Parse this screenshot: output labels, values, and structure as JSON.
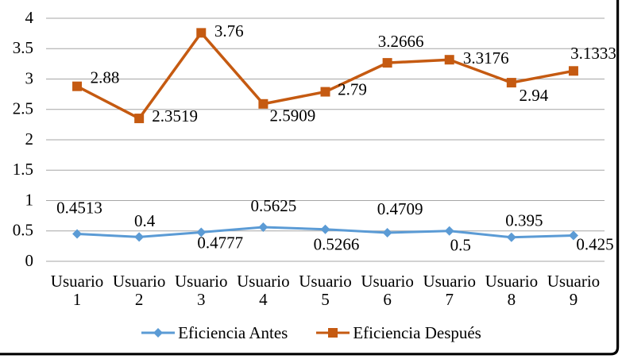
{
  "chart_data": {
    "type": "line",
    "title": "",
    "xlabel": "",
    "ylabel": "",
    "categories": [
      "Usuario 1",
      "Usuario 2",
      "Usuario 3",
      "Usuario 4",
      "Usuario 5",
      "Usuario 6",
      "Usuario 7",
      "Usuario 8",
      "Usuario 9"
    ],
    "series": [
      {
        "name": "Eficiencia Antes",
        "color": "#5B9BD5",
        "marker": "diamond",
        "values": [
          0.4513,
          0.4,
          0.4777,
          0.5625,
          0.5266,
          0.4709,
          0.5,
          0.395,
          0.425
        ],
        "labels": [
          "0.4513",
          "0.4",
          "0.4777",
          "0.5625",
          "0.5266",
          "0.4709",
          "0.5",
          "0.395",
          "0.425"
        ]
      },
      {
        "name": "Eficiencia Después",
        "color": "#C55A11",
        "marker": "square",
        "values": [
          2.88,
          2.3519,
          3.76,
          2.5909,
          2.79,
          3.2666,
          3.3176,
          2.94,
          3.1333
        ],
        "labels": [
          "2.88",
          "2.3519",
          "3.76",
          "2.5909",
          "2.79",
          "3.2666",
          "3.3176",
          "2.94",
          "3.1333"
        ]
      }
    ],
    "y_axis": {
      "min": 0,
      "max": 4,
      "step": 0.5,
      "ticks": [
        "0",
        "0.5",
        "1",
        "1.5",
        "2",
        "2.5",
        "3",
        "3.5",
        "4"
      ]
    },
    "grid": "horizontal",
    "legend_position": "bottom"
  },
  "colors": {
    "grid": "#A6A6A6",
    "text": "#000000",
    "border": "#000000",
    "background": "#FFFFFF",
    "series_antes": "#5B9BD5",
    "series_despues": "#C55A11"
  }
}
